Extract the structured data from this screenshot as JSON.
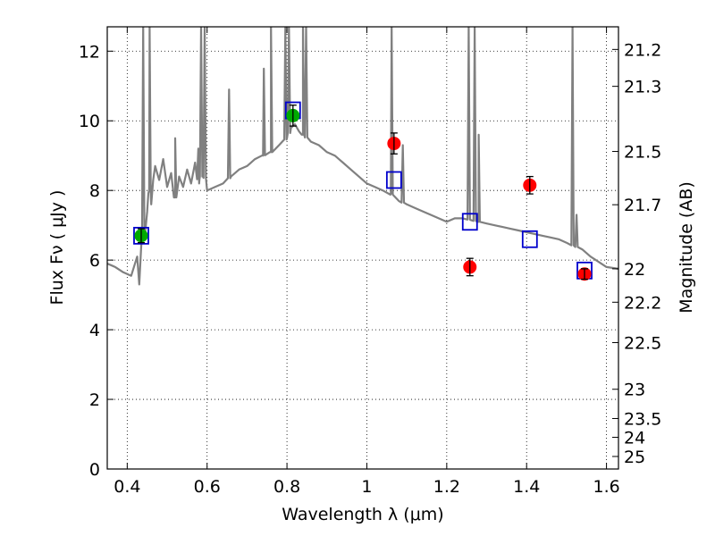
{
  "chart_data": {
    "type": "scatter",
    "xlabel": "Wavelength  λ (μm)",
    "ylabel": "Flux  Fν  ( μJy )",
    "y2label": "Magnitude (AB)",
    "xlim": [
      0.35,
      1.63
    ],
    "ylim": [
      0,
      12.7
    ],
    "grid": true,
    "x_ticks": [
      0.4,
      0.6,
      0.8,
      1.0,
      1.2,
      1.4,
      1.6
    ],
    "x_tick_labels": [
      "0.4",
      "0.6",
      "0.8",
      "1",
      "1.2",
      "1.4",
      "1.6"
    ],
    "y_ticks": [
      0,
      2,
      4,
      6,
      8,
      10,
      12
    ],
    "y_tick_labels": [
      "0",
      "2",
      "4",
      "6",
      "8",
      "10",
      "12"
    ],
    "y2_ticks": [
      {
        "label": "21.2",
        "flux": 12.05
      },
      {
        "label": "21.3",
        "flux": 10.99
      },
      {
        "label": "21.5",
        "flux": 9.12
      },
      {
        "label": "21.7",
        "flux": 7.59
      },
      {
        "label": "22",
        "flux": 5.75
      },
      {
        "label": "22.2",
        "flux": 4.79
      },
      {
        "label": "22.5",
        "flux": 3.63
      },
      {
        "label": "23",
        "flux": 2.29
      },
      {
        "label": "23.5",
        "flux": 1.45
      },
      {
        "label": "24",
        "flux": 0.91
      },
      {
        "label": "25",
        "flux": 0.36
      }
    ],
    "series": [
      {
        "kind": "line",
        "color": "#808080",
        "x": [
          0.35,
          0.37,
          0.39,
          0.41,
          0.425,
          0.43,
          0.435,
          0.445,
          0.45,
          0.455,
          0.46,
          0.465,
          0.47,
          0.48,
          0.49,
          0.5,
          0.51,
          0.52,
          0.53,
          0.54,
          0.55,
          0.56,
          0.57,
          0.58,
          0.59,
          0.6,
          0.62,
          0.64,
          0.66,
          0.68,
          0.7,
          0.72,
          0.74,
          0.76,
          0.78,
          0.8,
          0.81,
          0.82,
          0.83,
          0.84,
          0.86,
          0.88,
          0.9,
          0.92,
          0.94,
          0.96,
          0.98,
          1.0,
          1.02,
          1.04,
          1.06,
          1.08,
          1.1,
          1.12,
          1.14,
          1.16,
          1.18,
          1.2,
          1.22,
          1.24,
          1.26,
          1.28,
          1.3,
          1.32,
          1.34,
          1.36,
          1.38,
          1.4,
          1.42,
          1.44,
          1.46,
          1.48,
          1.5,
          1.52,
          1.54,
          1.56,
          1.58,
          1.6,
          1.63
        ],
        "y": [
          5.9,
          5.8,
          5.65,
          5.55,
          6.1,
          5.3,
          6.4,
          6.8,
          7.4,
          8.0,
          7.6,
          8.3,
          8.7,
          8.3,
          8.9,
          8.1,
          8.5,
          7.8,
          8.4,
          8.1,
          8.6,
          8.2,
          8.8,
          8.2,
          8.6,
          8.0,
          8.1,
          8.2,
          8.4,
          8.6,
          8.7,
          8.9,
          9.0,
          9.1,
          9.3,
          9.5,
          9.8,
          9.9,
          9.7,
          9.6,
          9.4,
          9.3,
          9.1,
          9.0,
          8.8,
          8.6,
          8.4,
          8.2,
          8.1,
          8.0,
          7.9,
          7.7,
          7.6,
          7.5,
          7.4,
          7.3,
          7.2,
          7.1,
          7.2,
          7.2,
          7.15,
          7.1,
          7.05,
          7.0,
          6.95,
          6.9,
          6.85,
          6.8,
          6.75,
          6.7,
          6.65,
          6.6,
          6.5,
          6.4,
          6.3,
          6.1,
          5.95,
          5.8,
          5.75
        ],
        "spikes": [
          {
            "x": 0.44,
            "peak": 12.7
          },
          {
            "x": 0.456,
            "peak": 12.7
          },
          {
            "x": 0.52,
            "peak": 9.5
          },
          {
            "x": 0.578,
            "peak": 9.2
          },
          {
            "x": 0.585,
            "peak": 12.7
          },
          {
            "x": 0.594,
            "peak": 12.7
          },
          {
            "x": 0.655,
            "peak": 10.9
          },
          {
            "x": 0.742,
            "peak": 11.5
          },
          {
            "x": 0.76,
            "peak": 12.7
          },
          {
            "x": 0.796,
            "peak": 12.7
          },
          {
            "x": 0.805,
            "peak": 12.7
          },
          {
            "x": 0.84,
            "peak": 12.7
          },
          {
            "x": 0.848,
            "peak": 12.7
          },
          {
            "x": 1.062,
            "peak": 12.7
          },
          {
            "x": 1.09,
            "peak": 9.3
          },
          {
            "x": 1.255,
            "peak": 12.7
          },
          {
            "x": 1.27,
            "peak": 12.7
          },
          {
            "x": 1.28,
            "peak": 9.6
          },
          {
            "x": 1.515,
            "peak": 12.7
          },
          {
            "x": 1.525,
            "peak": 7.3
          }
        ]
      },
      {
        "kind": "square",
        "color": "#0000cc",
        "x": [
          0.435,
          0.815,
          1.068,
          1.258,
          1.408,
          1.545
        ],
        "y": [
          6.7,
          10.3,
          8.3,
          7.1,
          6.6,
          5.7
        ]
      },
      {
        "kind": "point",
        "color": "#00aa00",
        "x": [
          0.435,
          0.815
        ],
        "y": [
          6.7,
          10.15
        ],
        "err": [
          0.2,
          0.3
        ]
      },
      {
        "kind": "point",
        "color": "#ff0000",
        "x": [
          1.068,
          1.258,
          1.408,
          1.545
        ],
        "y": [
          9.35,
          5.8,
          8.15,
          5.6
        ],
        "err": [
          0.3,
          0.25,
          0.25,
          0.15
        ]
      }
    ]
  }
}
